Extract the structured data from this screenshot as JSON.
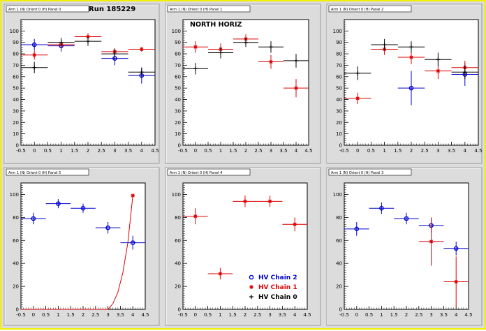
{
  "run_label": "Run 185229",
  "panel_label": "NORTH HORIZ",
  "colors": {
    "chain2": "#0000cc",
    "chain1": "#dd0000",
    "chain0": "#000000",
    "frame": "#f0f000",
    "background": "#dcdcdc"
  },
  "chart_data": [
    {
      "type": "scatter",
      "title": "Arm 1 (N) Orient 0 (H) Panel 0",
      "xlim": [
        -0.5,
        4.5
      ],
      "ylim": [
        0,
        110
      ],
      "xticks": [
        "-0.5",
        "0",
        "0.5",
        "1",
        "1.5",
        "2",
        "2.5",
        "3",
        "3.5",
        "4",
        "4.5"
      ],
      "yticks": [
        "0",
        "10",
        "20",
        "30",
        "40",
        "50",
        "60",
        "70",
        "80",
        "90",
        "100"
      ],
      "series": [
        {
          "name": "HV Chain 2",
          "color": "#0000cc",
          "marker": "circle",
          "points": [
            {
              "x": 0,
              "y": 88,
              "xerr": 0.5,
              "yerr": 5
            },
            {
              "x": 1,
              "y": 87,
              "xerr": 0.5,
              "yerr": 5
            },
            {
              "x": 3,
              "y": 76,
              "xerr": 0.5,
              "yerr": 6
            },
            {
              "x": 4,
              "y": 61,
              "xerr": 0.5,
              "yerr": 7
            }
          ]
        },
        {
          "name": "HV Chain 1",
          "color": "#dd0000",
          "marker": "star",
          "points": [
            {
              "x": 0,
              "y": 79,
              "xerr": 0.5,
              "yerr": 4
            },
            {
              "x": 1,
              "y": 88,
              "xerr": 0.5,
              "yerr": 3
            },
            {
              "x": 2,
              "y": 95,
              "xerr": 0.5,
              "yerr": 3
            },
            {
              "x": 3,
              "y": 82,
              "xerr": 0.5,
              "yerr": 3
            },
            {
              "x": 4,
              "y": 84,
              "xerr": 0.5,
              "yerr": 2
            }
          ]
        },
        {
          "name": "HV Chain 0",
          "color": "#000000",
          "marker": "plus",
          "points": [
            {
              "x": 0,
              "y": 68,
              "xerr": 0.5,
              "yerr": 5
            },
            {
              "x": 1,
              "y": 90,
              "xerr": 0.5,
              "yerr": 4
            },
            {
              "x": 2,
              "y": 91,
              "xerr": 0.5,
              "yerr": 4
            },
            {
              "x": 3,
              "y": 80,
              "xerr": 0.5,
              "yerr": 4
            },
            {
              "x": 4,
              "y": 64,
              "xerr": 0.5,
              "yerr": 4
            }
          ]
        }
      ]
    },
    {
      "type": "scatter",
      "title": "Arm 1 (N) Orient 0 (H) Panel 1",
      "xlim": [
        -0.5,
        4.5
      ],
      "ylim": [
        0,
        110
      ],
      "xticks": [
        "-0.5",
        "0",
        "0.5",
        "1",
        "1.5",
        "2",
        "2.5",
        "3",
        "3.5",
        "4",
        "4.5"
      ],
      "yticks": [
        "0",
        "10",
        "20",
        "30",
        "40",
        "50",
        "60",
        "70",
        "80",
        "90",
        "100"
      ],
      "series": [
        {
          "name": "HV Chain 1",
          "color": "#dd0000",
          "marker": "star",
          "points": [
            {
              "x": 0,
              "y": 86,
              "xerr": 0.5,
              "yerr": 5
            },
            {
              "x": 1,
              "y": 84,
              "xerr": 0.5,
              "yerr": 5
            },
            {
              "x": 2,
              "y": 93,
              "xerr": 0.5,
              "yerr": 4
            },
            {
              "x": 3,
              "y": 73,
              "xerr": 0.5,
              "yerr": 6
            },
            {
              "x": 4,
              "y": 50,
              "xerr": 0.5,
              "yerr": 8
            }
          ]
        },
        {
          "name": "HV Chain 0",
          "color": "#000000",
          "marker": "plus",
          "points": [
            {
              "x": 0,
              "y": 67,
              "xerr": 0.5,
              "yerr": 5
            },
            {
              "x": 1,
              "y": 81,
              "xerr": 0.5,
              "yerr": 5
            },
            {
              "x": 2,
              "y": 90,
              "xerr": 0.5,
              "yerr": 4
            },
            {
              "x": 3,
              "y": 86,
              "xerr": 0.5,
              "yerr": 5
            },
            {
              "x": 4,
              "y": 74,
              "xerr": 0.5,
              "yerr": 6
            }
          ]
        }
      ]
    },
    {
      "type": "scatter",
      "title": "Arm 1 (N) Orient 0 (H) Panel 2",
      "xlim": [
        -0.5,
        4.5
      ],
      "ylim": [
        0,
        110
      ],
      "xticks": [
        "-0.5",
        "0",
        "0.5",
        "1",
        "1.5",
        "2",
        "2.5",
        "3",
        "3.5",
        "4",
        "4.5"
      ],
      "yticks": [
        "0",
        "10",
        "20",
        "30",
        "40",
        "50",
        "60",
        "70",
        "80",
        "90",
        "100"
      ],
      "series": [
        {
          "name": "HV Chain 2",
          "color": "#0000cc",
          "marker": "circle",
          "points": [
            {
              "x": 2,
              "y": 50,
              "xerr": 0.5,
              "yerr": 15
            },
            {
              "x": 4,
              "y": 62,
              "xerr": 0.5,
              "yerr": 10
            }
          ]
        },
        {
          "name": "HV Chain 1",
          "color": "#dd0000",
          "marker": "star",
          "points": [
            {
              "x": 0,
              "y": 41,
              "xerr": 0.5,
              "yerr": 5
            },
            {
              "x": 1,
              "y": 84,
              "xerr": 0.5,
              "yerr": 5
            },
            {
              "x": 2,
              "y": 77,
              "xerr": 0.5,
              "yerr": 6
            },
            {
              "x": 3,
              "y": 65,
              "xerr": 0.5,
              "yerr": 7
            },
            {
              "x": 4,
              "y": 68,
              "xerr": 0.5,
              "yerr": 6
            }
          ]
        },
        {
          "name": "HV Chain 0",
          "color": "#000000",
          "marker": "plus",
          "points": [
            {
              "x": 0,
              "y": 63,
              "xerr": 0.5,
              "yerr": 6
            },
            {
              "x": 1,
              "y": 88,
              "xerr": 0.5,
              "yerr": 5
            },
            {
              "x": 2,
              "y": 86,
              "xerr": 0.5,
              "yerr": 5
            },
            {
              "x": 3,
              "y": 75,
              "xerr": 0.5,
              "yerr": 6
            },
            {
              "x": 4,
              "y": 64,
              "xerr": 0.5,
              "yerr": 6
            }
          ]
        }
      ]
    },
    {
      "type": "scatter",
      "title": "Arm 1 (N) Orient 0 (H) Panel 5",
      "xlim": [
        -0.5,
        4.5
      ],
      "ylim": [
        0,
        110
      ],
      "xticks": [
        "-0.5",
        "0",
        "0.5",
        "1",
        "1.5",
        "2",
        "2.5",
        "3",
        "3.5",
        "4",
        "4.5"
      ],
      "yticks": [
        "0",
        "20",
        "40",
        "60",
        "80",
        "100"
      ],
      "series": [
        {
          "name": "HV Chain 2",
          "color": "#0000cc",
          "marker": "circle",
          "points": [
            {
              "x": 0,
              "y": 79,
              "xerr": 0.5,
              "yerr": 5
            },
            {
              "x": 1,
              "y": 92,
              "xerr": 0.5,
              "yerr": 4
            },
            {
              "x": 2,
              "y": 88,
              "xerr": 0.5,
              "yerr": 4
            },
            {
              "x": 3,
              "y": 71,
              "xerr": 0.5,
              "yerr": 5
            },
            {
              "x": 4,
              "y": 58,
              "xerr": 0.5,
              "yerr": 6
            }
          ]
        },
        {
          "name": "HV Chain 1",
          "color": "#dd0000",
          "marker": "star",
          "points": [
            {
              "x": 4,
              "y": 99,
              "xerr": 0,
              "yerr": 0
            }
          ]
        }
      ],
      "curve": {
        "color": "#dd0000",
        "x": [
          -0.5,
          3.0,
          3.2,
          3.4,
          3.6,
          3.8,
          4.0
        ],
        "y": [
          0,
          0,
          5,
          15,
          32,
          58,
          99
        ]
      }
    },
    {
      "type": "scatter",
      "title": "Arm 1 (N) Orient 0 (H) Panel 4",
      "xlim": [
        -0.5,
        4.5
      ],
      "ylim": [
        0,
        110
      ],
      "xticks": [
        "-0.5",
        "0",
        "0.5",
        "1",
        "1.5",
        "2",
        "2.5",
        "3",
        "3.5",
        "4",
        "4.5"
      ],
      "yticks": [
        "0",
        "20",
        "40",
        "60",
        "80",
        "100"
      ],
      "series": [
        {
          "name": "HV Chain 1",
          "color": "#dd0000",
          "marker": "star",
          "points": [
            {
              "x": 0,
              "y": 81,
              "xerr": 0.5,
              "yerr": 7
            },
            {
              "x": 1,
              "y": 31,
              "xerr": 0.5,
              "yerr": 5
            },
            {
              "x": 2,
              "y": 94,
              "xerr": 0.5,
              "yerr": 5
            },
            {
              "x": 3,
              "y": 94,
              "xerr": 0.5,
              "yerr": 5
            },
            {
              "x": 4,
              "y": 74,
              "xerr": 0.5,
              "yerr": 6
            }
          ]
        }
      ],
      "legend": [
        {
          "label": "HV Chain 2",
          "color": "#0000cc",
          "marker": "circle"
        },
        {
          "label": "HV Chain 1",
          "color": "#dd0000",
          "marker": "star"
        },
        {
          "label": "HV Chain 0",
          "color": "#000000",
          "marker": "plus"
        }
      ]
    },
    {
      "type": "scatter",
      "title": "Arm 1 (N) Orient 0 (H) Panel 3",
      "xlim": [
        -0.5,
        4.5
      ],
      "ylim": [
        0,
        110
      ],
      "xticks": [
        "-0.5",
        "0",
        "0.5",
        "1",
        "1.5",
        "2",
        "2.5",
        "3",
        "3.5",
        "4",
        "4.5"
      ],
      "yticks": [
        "0",
        "20",
        "40",
        "60",
        "80",
        "100"
      ],
      "series": [
        {
          "name": "HV Chain 2",
          "color": "#0000cc",
          "marker": "circle",
          "points": [
            {
              "x": 0,
              "y": 70,
              "xerr": 0.5,
              "yerr": 6
            },
            {
              "x": 1,
              "y": 88,
              "xerr": 0.5,
              "yerr": 5
            },
            {
              "x": 2,
              "y": 79,
              "xerr": 0.5,
              "yerr": 5
            },
            {
              "x": 3,
              "y": 73,
              "xerr": 0.5,
              "yerr": 6
            },
            {
              "x": 4,
              "y": 53,
              "xerr": 0.5,
              "yerr": 6
            }
          ]
        },
        {
          "name": "HV Chain 1",
          "color": "#dd0000",
          "marker": "star",
          "points": [
            {
              "x": 3,
              "y": 59,
              "xerr": 0.5,
              "yerr": 21
            },
            {
              "x": 4,
              "y": 24,
              "xerr": 0.5,
              "yerr": 22
            }
          ]
        }
      ]
    }
  ]
}
